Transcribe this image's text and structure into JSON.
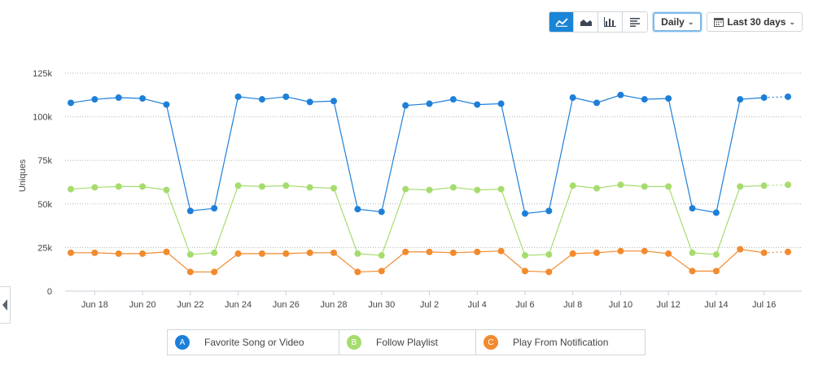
{
  "toolbar": {
    "views": [
      "line-chart-icon",
      "area-chart-icon",
      "bar-chart-icon",
      "table-view-icon"
    ],
    "interval_label": "Daily",
    "range_label": "Last 30 days"
  },
  "colors": {
    "accent": "#1a84d6",
    "a": "#1e7fd9",
    "b": "#a6dc6e",
    "c": "#f28a2e"
  },
  "legend": [
    {
      "letter": "A",
      "label": "Favorite Song or Video"
    },
    {
      "letter": "B",
      "label": "Follow Playlist"
    },
    {
      "letter": "C",
      "label": "Play From Notification"
    }
  ],
  "chart_data": {
    "type": "line",
    "ylabel": "Uniques",
    "ylim": [
      0,
      125000
    ],
    "yticks": [
      0,
      25000,
      50000,
      75000,
      100000,
      125000
    ],
    "ytick_labels": [
      "0",
      "25k",
      "50k",
      "75k",
      "100k",
      "125k"
    ],
    "x": [
      "Jun 17",
      "Jun 18",
      "Jun 19",
      "Jun 20",
      "Jun 21",
      "Jun 22",
      "Jun 23",
      "Jun 24",
      "Jun 25",
      "Jun 26",
      "Jun 27",
      "Jun 28",
      "Jun 29",
      "Jun 30",
      "Jul 1",
      "Jul 2",
      "Jul 3",
      "Jul 4",
      "Jul 5",
      "Jul 6",
      "Jul 7",
      "Jul 8",
      "Jul 9",
      "Jul 10",
      "Jul 11",
      "Jul 12",
      "Jul 13",
      "Jul 14",
      "Jul 15",
      "Jul 16",
      "Jul 17"
    ],
    "xtick_labels": [
      "Jun 18",
      "Jun 20",
      "Jun 22",
      "Jun 24",
      "Jun 26",
      "Jun 28",
      "Jun 30",
      "Jul 2",
      "Jul 4",
      "Jul 6",
      "Jul 8",
      "Jul 10",
      "Jul 12",
      "Jul 14",
      "Jul 16"
    ],
    "partial_last_point": true,
    "series": [
      {
        "name": "Favorite Song or Video",
        "values": [
          108000,
          110000,
          111000,
          110500,
          107000,
          46000,
          47500,
          111500,
          110000,
          111500,
          108500,
          109000,
          47000,
          45500,
          106500,
          107500,
          110000,
          107000,
          107500,
          44500,
          46000,
          111000,
          108000,
          112500,
          110000,
          110500,
          47500,
          45000,
          110000,
          111000,
          111500
        ]
      },
      {
        "name": "Follow Playlist",
        "values": [
          58500,
          59500,
          60000,
          60000,
          58000,
          21000,
          22000,
          60500,
          60000,
          60500,
          59500,
          59000,
          21500,
          20500,
          58500,
          58000,
          59500,
          58000,
          58500,
          20500,
          21000,
          60500,
          59000,
          61000,
          60000,
          60000,
          22000,
          21000,
          60000,
          60500,
          61000
        ]
      },
      {
        "name": "Play From Notification",
        "values": [
          22000,
          22000,
          21500,
          21500,
          22500,
          11000,
          11000,
          21500,
          21500,
          21500,
          22000,
          22000,
          11000,
          11500,
          22500,
          22500,
          22000,
          22500,
          23000,
          11500,
          11000,
          21500,
          22000,
          23000,
          23000,
          21500,
          11500,
          11500,
          24000,
          22000,
          22500
        ]
      }
    ]
  }
}
